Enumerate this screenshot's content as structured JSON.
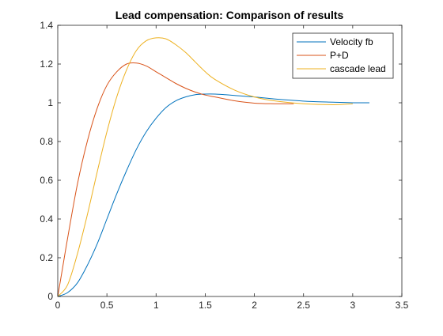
{
  "chart_data": {
    "type": "line",
    "title": "Lead compensation: Comparison of results",
    "xlabel": "",
    "ylabel": "",
    "xlim": [
      0,
      3.5
    ],
    "ylim": [
      0,
      1.4
    ],
    "xticks": [
      "0",
      "0.5",
      "1",
      "1.5",
      "2",
      "2.5",
      "3",
      "3.5"
    ],
    "yticks": [
      "0",
      "0.2",
      "0.4",
      "0.6",
      "0.8",
      "1",
      "1.2",
      "1.4"
    ],
    "grid": false,
    "legend_position": "top-right",
    "series": [
      {
        "name": "Velocity fb",
        "color": "#0072BD",
        "x": [
          0,
          0.1,
          0.2,
          0.3,
          0.4,
          0.5,
          0.6,
          0.7,
          0.8,
          0.9,
          1.0,
          1.1,
          1.2,
          1.3,
          1.4,
          1.5,
          1.6,
          1.7,
          1.8,
          2.0,
          2.2,
          2.4,
          2.6,
          2.8,
          3.0,
          3.17
        ],
        "y": [
          0,
          0.02,
          0.07,
          0.16,
          0.27,
          0.4,
          0.53,
          0.65,
          0.76,
          0.85,
          0.92,
          0.975,
          1.01,
          1.03,
          1.042,
          1.045,
          1.045,
          1.042,
          1.038,
          1.03,
          1.02,
          1.012,
          1.006,
          1.003,
          1.0,
          1.0
        ]
      },
      {
        "name": "P+D",
        "color": "#D95319",
        "x": [
          0,
          0.05,
          0.1,
          0.2,
          0.3,
          0.4,
          0.5,
          0.6,
          0.7,
          0.8,
          0.9,
          1.0,
          1.1,
          1.2,
          1.3,
          1.4,
          1.5,
          1.6,
          1.8,
          2.0,
          2.2,
          2.4
        ],
        "y": [
          0,
          0.15,
          0.3,
          0.58,
          0.8,
          0.97,
          1.09,
          1.16,
          1.2,
          1.205,
          1.19,
          1.16,
          1.13,
          1.1,
          1.075,
          1.055,
          1.04,
          1.03,
          1.01,
          0.998,
          0.995,
          0.995
        ]
      },
      {
        "name": "cascade lead",
        "color": "#EDB120",
        "x": [
          0,
          0.1,
          0.2,
          0.3,
          0.4,
          0.5,
          0.6,
          0.7,
          0.8,
          0.9,
          1.0,
          1.1,
          1.2,
          1.3,
          1.4,
          1.5,
          1.6,
          1.8,
          2.0,
          2.2,
          2.5,
          2.8,
          3.0
        ],
        "y": [
          0,
          0.06,
          0.22,
          0.42,
          0.64,
          0.85,
          1.03,
          1.17,
          1.27,
          1.32,
          1.335,
          1.33,
          1.3,
          1.26,
          1.21,
          1.16,
          1.12,
          1.065,
          1.03,
          1.01,
          0.995,
          0.99,
          0.995
        ]
      }
    ]
  }
}
